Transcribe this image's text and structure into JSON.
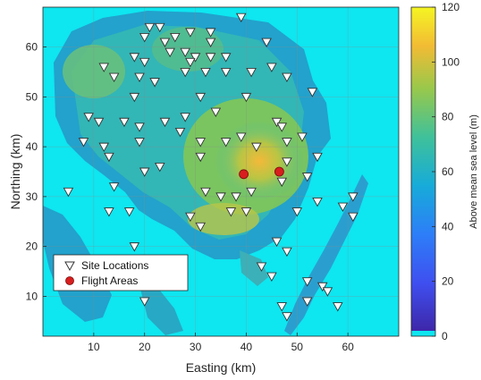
{
  "chart_data": {
    "type": "scatter",
    "subtype": "map-with-elevation-raster",
    "xlabel": "Easting (km)",
    "ylabel": "Northing (km)",
    "xlim": [
      0,
      70
    ],
    "ylim": [
      2,
      68
    ],
    "xticks": [
      10,
      20,
      30,
      40,
      50,
      60
    ],
    "yticks": [
      10,
      20,
      30,
      40,
      50,
      60
    ],
    "grid": true,
    "background_color": "#0ee6f0",
    "colorbar": {
      "label": "Above mean sea level (m)",
      "range": [
        0,
        120
      ],
      "ticks": [
        0,
        20,
        40,
        60,
        80,
        100,
        120
      ],
      "colormap": "parula",
      "position": "right"
    },
    "legend": {
      "position": "bottom-left",
      "entries": [
        {
          "label": "Site Locations",
          "marker": "triangle-down",
          "color": "#ffffff"
        },
        {
          "label": "Flight Areas",
          "marker": "circle",
          "color": "#d81e1e"
        }
      ]
    },
    "series": [
      {
        "name": "Site Locations",
        "marker": "triangle-down",
        "points": [
          [
            21,
            64
          ],
          [
            23,
            64
          ],
          [
            24,
            61
          ],
          [
            29,
            63
          ],
          [
            33,
            63
          ],
          [
            39,
            66
          ],
          [
            20,
            62
          ],
          [
            26,
            62
          ],
          [
            33,
            61
          ],
          [
            44,
            61
          ],
          [
            18,
            58
          ],
          [
            25,
            59
          ],
          [
            28,
            59
          ],
          [
            30,
            58
          ],
          [
            33,
            58
          ],
          [
            36,
            58
          ],
          [
            20,
            57
          ],
          [
            29,
            57
          ],
          [
            12,
            56
          ],
          [
            14,
            54
          ],
          [
            19,
            54
          ],
          [
            22,
            53
          ],
          [
            28,
            55
          ],
          [
            32,
            55
          ],
          [
            36,
            55
          ],
          [
            41,
            55
          ],
          [
            45,
            56
          ],
          [
            48,
            54
          ],
          [
            53,
            51
          ],
          [
            18,
            50
          ],
          [
            31,
            50
          ],
          [
            40,
            50
          ],
          [
            9,
            46
          ],
          [
            11,
            45
          ],
          [
            16,
            45
          ],
          [
            19,
            44
          ],
          [
            24,
            45
          ],
          [
            28,
            46
          ],
          [
            34,
            47
          ],
          [
            46,
            45
          ],
          [
            47,
            44
          ],
          [
            51,
            42
          ],
          [
            8,
            41
          ],
          [
            12,
            40
          ],
          [
            19,
            41
          ],
          [
            27,
            43
          ],
          [
            31,
            41
          ],
          [
            36,
            41
          ],
          [
            39,
            42
          ],
          [
            42,
            40
          ],
          [
            48,
            41
          ],
          [
            13,
            38
          ],
          [
            23,
            36
          ],
          [
            31,
            38
          ],
          [
            48,
            37
          ],
          [
            54,
            38
          ],
          [
            20,
            35
          ],
          [
            47,
            33
          ],
          [
            52,
            34
          ],
          [
            14,
            32
          ],
          [
            32,
            31
          ],
          [
            35,
            30
          ],
          [
            38,
            30
          ],
          [
            41,
            31
          ],
          [
            54,
            29
          ],
          [
            5,
            31
          ],
          [
            31,
            24
          ],
          [
            37,
            27
          ],
          [
            40,
            27
          ],
          [
            50,
            27
          ],
          [
            13,
            27
          ],
          [
            17,
            27
          ],
          [
            29,
            26
          ],
          [
            59,
            28
          ],
          [
            61,
            26
          ],
          [
            61,
            30
          ],
          [
            18,
            20
          ],
          [
            46,
            21
          ],
          [
            48,
            19
          ],
          [
            43,
            16
          ],
          [
            45,
            14
          ],
          [
            52,
            13
          ],
          [
            55,
            12
          ],
          [
            56,
            11
          ],
          [
            47,
            8
          ],
          [
            52,
            9
          ],
          [
            20,
            9
          ],
          [
            58,
            8
          ],
          [
            48,
            6
          ]
        ]
      },
      {
        "name": "Flight Areas",
        "marker": "circle",
        "points": [
          [
            39.5,
            34.5
          ],
          [
            46.5,
            35
          ]
        ]
      }
    ]
  }
}
